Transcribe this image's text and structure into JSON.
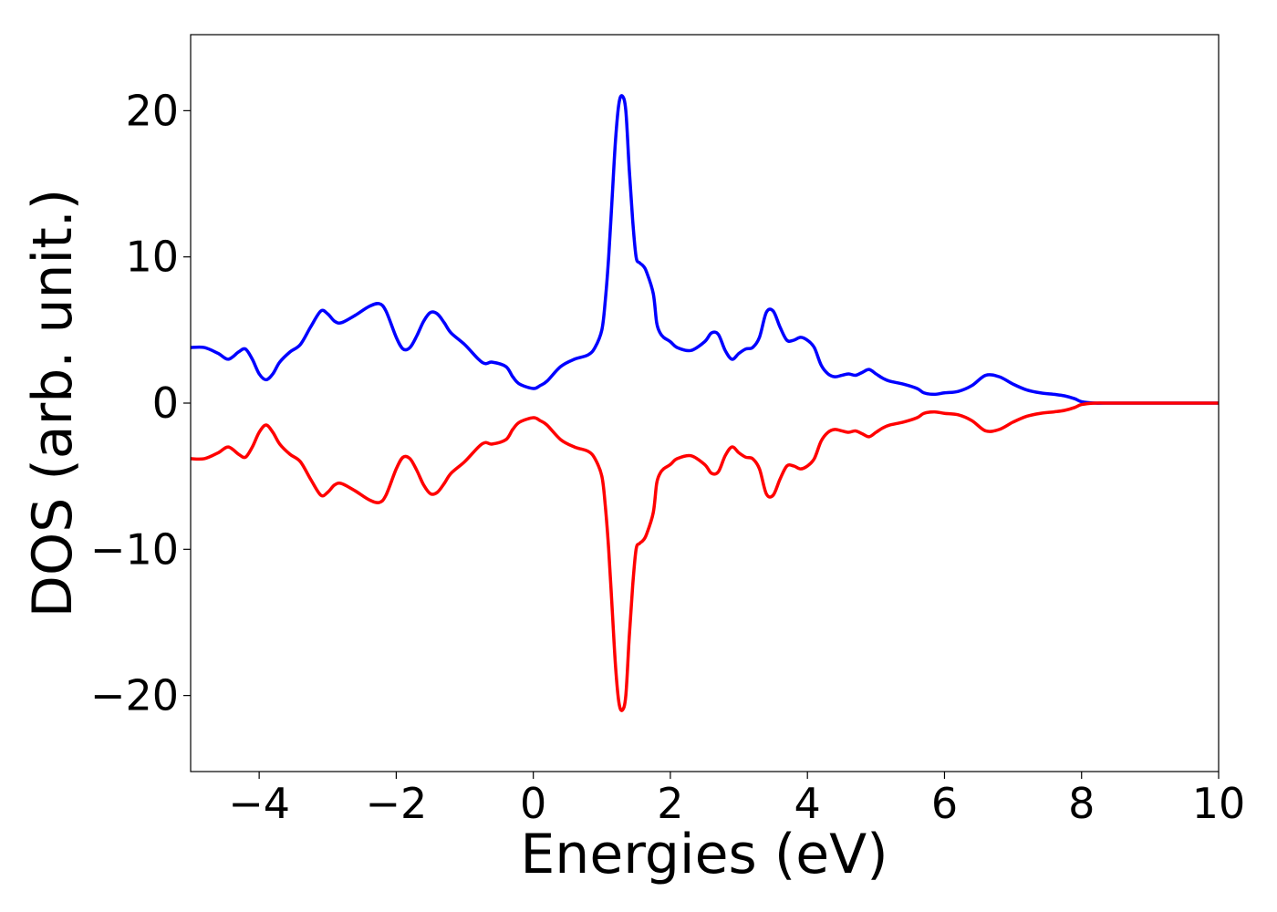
{
  "chart_data": {
    "type": "line",
    "title": "",
    "xlabel": "Energies (eV)",
    "ylabel": "DOS (arb. unit.)",
    "xlim": [
      -5,
      10
    ],
    "ylim": [
      -25.2,
      25.2
    ],
    "grid": false,
    "legend": "none",
    "xticks": [
      -4,
      -2,
      0,
      2,
      4,
      6,
      8,
      10
    ],
    "xtick_labels": [
      "−4",
      "−2",
      "0",
      "2",
      "4",
      "6",
      "8",
      "10"
    ],
    "yticks": [
      -20,
      -10,
      0,
      10,
      20
    ],
    "ytick_labels": [
      "−20",
      "−10",
      "0",
      "10",
      "20"
    ],
    "series": [
      {
        "color": "#0000ff",
        "x": [
          -5.0,
          -4.8,
          -4.6,
          -4.45,
          -4.3,
          -4.2,
          -4.1,
          -4.0,
          -3.9,
          -3.8,
          -3.7,
          -3.55,
          -3.4,
          -3.25,
          -3.1,
          -3.0,
          -2.9,
          -2.8,
          -2.6,
          -2.4,
          -2.25,
          -2.15,
          -2.0,
          -1.9,
          -1.8,
          -1.7,
          -1.6,
          -1.5,
          -1.4,
          -1.3,
          -1.2,
          -1.0,
          -0.8,
          -0.7,
          -0.6,
          -0.4,
          -0.3,
          -0.2,
          0.0,
          0.1,
          0.2,
          0.4,
          0.6,
          0.8,
          0.9,
          1.0,
          1.05,
          1.1,
          1.15,
          1.2,
          1.25,
          1.3,
          1.35,
          1.4,
          1.45,
          1.5,
          1.55,
          1.6,
          1.65,
          1.75,
          1.8,
          1.85,
          1.9,
          2.0,
          2.1,
          2.3,
          2.5,
          2.6,
          2.7,
          2.8,
          2.9,
          3.0,
          3.1,
          3.2,
          3.3,
          3.4,
          3.5,
          3.6,
          3.7,
          3.8,
          3.9,
          4.0,
          4.1,
          4.2,
          4.3,
          4.4,
          4.5,
          4.6,
          4.7,
          4.8,
          4.9,
          5.0,
          5.1,
          5.2,
          5.4,
          5.6,
          5.7,
          5.85,
          6.0,
          6.2,
          6.4,
          6.6,
          6.8,
          7.0,
          7.2,
          7.4,
          7.6,
          7.75,
          7.9,
          8.0,
          8.2,
          8.4,
          8.6,
          8.8,
          9.0,
          9.2,
          9.4,
          9.6,
          9.8,
          10.0
        ],
        "y": [
          3.8,
          3.8,
          3.4,
          3.0,
          3.5,
          3.7,
          3.0,
          2.0,
          1.6,
          2.0,
          2.8,
          3.5,
          4.0,
          5.2,
          6.3,
          6.1,
          5.6,
          5.5,
          6.0,
          6.6,
          6.8,
          6.3,
          4.5,
          3.7,
          3.8,
          4.6,
          5.6,
          6.2,
          6.1,
          5.5,
          4.8,
          4.0,
          3.0,
          2.7,
          2.8,
          2.5,
          1.8,
          1.3,
          1.0,
          1.2,
          1.5,
          2.5,
          3.0,
          3.3,
          3.8,
          5.0,
          7.0,
          10.0,
          14.0,
          18.0,
          20.5,
          21.0,
          20.0,
          16.0,
          12.5,
          10.0,
          9.6,
          9.4,
          9.0,
          7.5,
          5.5,
          4.8,
          4.5,
          4.2,
          3.8,
          3.6,
          4.2,
          4.8,
          4.7,
          3.6,
          3.0,
          3.4,
          3.7,
          3.8,
          4.5,
          6.2,
          6.3,
          5.2,
          4.3,
          4.3,
          4.5,
          4.3,
          3.8,
          2.6,
          2.0,
          1.8,
          1.9,
          2.0,
          1.9,
          2.1,
          2.3,
          2.0,
          1.7,
          1.5,
          1.3,
          1.0,
          0.7,
          0.6,
          0.7,
          0.8,
          1.2,
          1.9,
          1.8,
          1.3,
          0.9,
          0.7,
          0.6,
          0.5,
          0.3,
          0.1,
          0.0,
          0.0,
          0.0,
          0.0,
          0.0,
          0.0,
          0.0,
          0.0,
          0.0,
          0.0
        ]
      },
      {
        "color": "#ff0000",
        "x": [
          -5.0,
          -4.8,
          -4.6,
          -4.45,
          -4.3,
          -4.2,
          -4.1,
          -4.0,
          -3.9,
          -3.8,
          -3.7,
          -3.55,
          -3.4,
          -3.25,
          -3.1,
          -3.0,
          -2.9,
          -2.8,
          -2.6,
          -2.4,
          -2.25,
          -2.15,
          -2.0,
          -1.9,
          -1.8,
          -1.7,
          -1.6,
          -1.5,
          -1.4,
          -1.3,
          -1.2,
          -1.0,
          -0.8,
          -0.7,
          -0.6,
          -0.4,
          -0.3,
          -0.2,
          0.0,
          0.1,
          0.2,
          0.4,
          0.6,
          0.8,
          0.9,
          1.0,
          1.05,
          1.1,
          1.15,
          1.2,
          1.25,
          1.3,
          1.35,
          1.4,
          1.45,
          1.5,
          1.55,
          1.6,
          1.65,
          1.75,
          1.8,
          1.85,
          1.9,
          2.0,
          2.1,
          2.3,
          2.5,
          2.6,
          2.7,
          2.8,
          2.9,
          3.0,
          3.1,
          3.2,
          3.3,
          3.4,
          3.5,
          3.6,
          3.7,
          3.8,
          3.9,
          4.0,
          4.1,
          4.2,
          4.3,
          4.4,
          4.5,
          4.6,
          4.7,
          4.8,
          4.9,
          5.0,
          5.1,
          5.2,
          5.4,
          5.6,
          5.7,
          5.85,
          6.0,
          6.2,
          6.4,
          6.6,
          6.8,
          7.0,
          7.2,
          7.4,
          7.6,
          7.75,
          7.9,
          8.0,
          8.2,
          8.4,
          8.6,
          8.8,
          9.0,
          9.2,
          9.4,
          9.6,
          9.8,
          10.0
        ],
        "y": [
          -3.8,
          -3.8,
          -3.4,
          -3.0,
          -3.5,
          -3.7,
          -3.0,
          -2.0,
          -1.5,
          -2.0,
          -2.8,
          -3.5,
          -4.0,
          -5.2,
          -6.3,
          -6.1,
          -5.6,
          -5.5,
          -6.0,
          -6.6,
          -6.8,
          -6.3,
          -4.5,
          -3.7,
          -3.8,
          -4.6,
          -5.6,
          -6.2,
          -6.1,
          -5.5,
          -4.8,
          -4.0,
          -3.0,
          -2.7,
          -2.8,
          -2.5,
          -1.8,
          -1.3,
          -1.0,
          -1.2,
          -1.5,
          -2.5,
          -3.0,
          -3.3,
          -3.8,
          -5.0,
          -7.0,
          -10.0,
          -14.0,
          -18.0,
          -20.5,
          -21.0,
          -20.0,
          -16.0,
          -12.5,
          -10.0,
          -9.6,
          -9.4,
          -9.0,
          -7.5,
          -5.5,
          -4.8,
          -4.5,
          -4.2,
          -3.8,
          -3.6,
          -4.2,
          -4.8,
          -4.7,
          -3.6,
          -3.0,
          -3.4,
          -3.7,
          -3.8,
          -4.5,
          -6.2,
          -6.3,
          -5.2,
          -4.3,
          -4.3,
          -4.5,
          -4.3,
          -3.8,
          -2.6,
          -2.0,
          -1.8,
          -1.9,
          -2.0,
          -1.9,
          -2.1,
          -2.3,
          -2.0,
          -1.7,
          -1.5,
          -1.3,
          -1.0,
          -0.7,
          -0.6,
          -0.7,
          -0.8,
          -1.2,
          -1.9,
          -1.8,
          -1.3,
          -0.9,
          -0.7,
          -0.6,
          -0.5,
          -0.3,
          -0.1,
          0.0,
          0.0,
          0.0,
          0.0,
          0.0,
          0.0,
          0.0,
          0.0,
          0.0,
          0.0
        ]
      }
    ]
  }
}
